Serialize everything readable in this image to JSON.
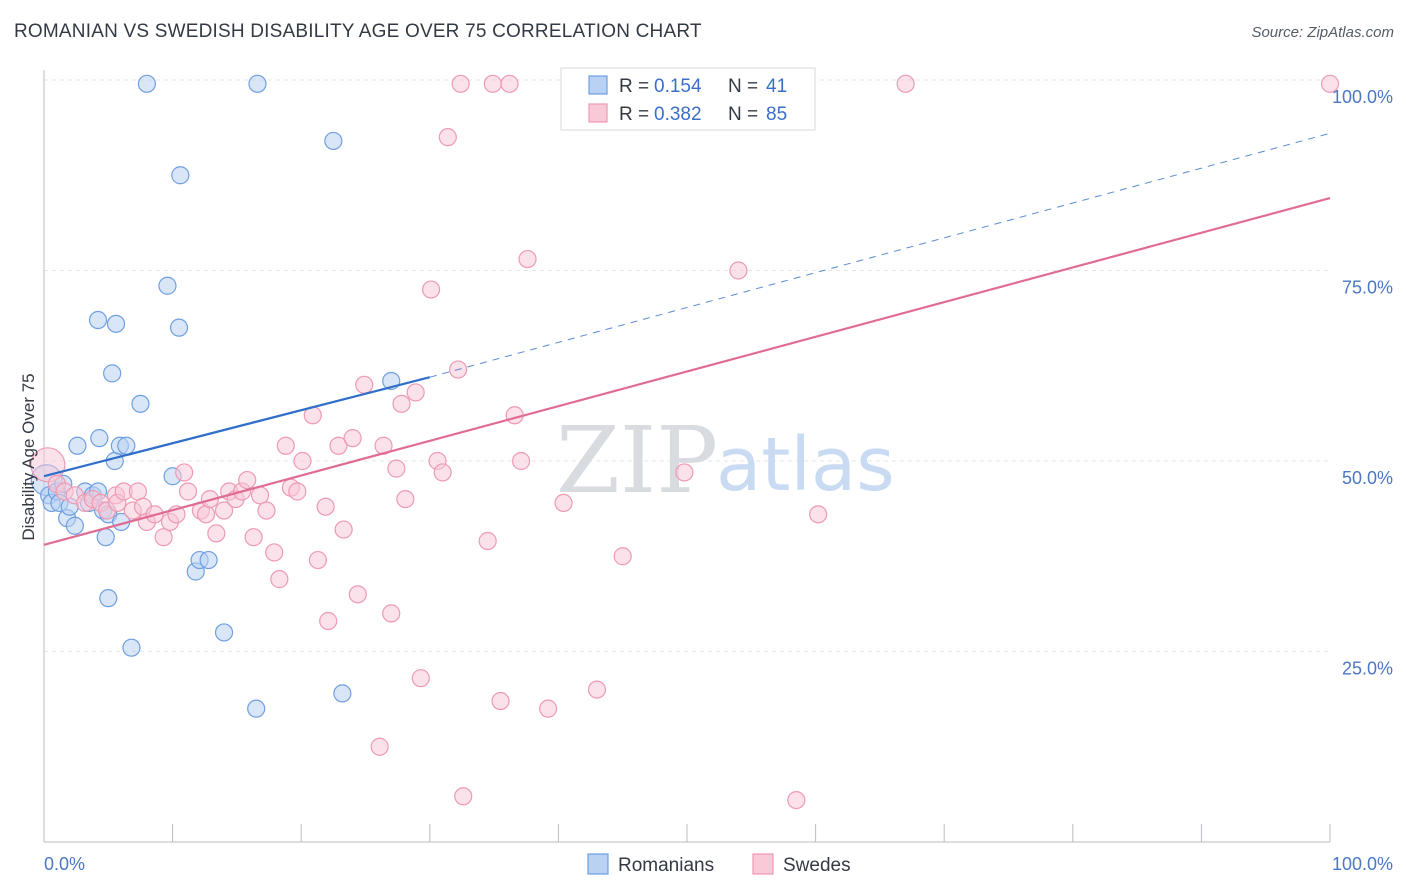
{
  "title": "ROMANIAN VS SWEDISH DISABILITY AGE OVER 75 CORRELATION CHART",
  "source": "Source: ZipAtlas.com",
  "watermark": {
    "zip": "ZIP",
    "atlas": "atlas"
  },
  "chart_data": {
    "type": "scatter",
    "ylabel": "Disability Age Over 75",
    "xlim": [
      0,
      100
    ],
    "ylim": [
      0,
      100
    ],
    "x_tick_labels": [
      {
        "value": 0,
        "label": "0.0%"
      },
      {
        "value": 100,
        "label": "100.0%"
      }
    ],
    "y_tick_labels": [
      {
        "value": 25,
        "label": "25.0%"
      },
      {
        "value": 50,
        "label": "50.0%"
      },
      {
        "value": 75,
        "label": "75.0%"
      },
      {
        "value": 100,
        "label": "100.0%"
      }
    ],
    "grid": true,
    "legend": {
      "position": "top-center",
      "rows": [
        {
          "r_label": "R = ",
          "r_value": "0.154",
          "n_label": "N = ",
          "n_value": "41"
        },
        {
          "r_label": "R = ",
          "r_value": "0.382",
          "n_label": "N = ",
          "n_value": "85"
        }
      ]
    },
    "series": [
      {
        "name": "Romanians",
        "color": "#6f9fe0",
        "fill": "#b9d1f3",
        "line_color": "#2f6fc9",
        "trend": {
          "x0": 0,
          "y0": 48,
          "x1": 30,
          "y1": 61,
          "dash_to_x": 100,
          "dash_to_y": 93
        },
        "points": [
          [
            0.2,
            47.5,
            18
          ],
          [
            0.4,
            45.5,
            10
          ],
          [
            0.6,
            44.5,
            10
          ],
          [
            1.0,
            46.0,
            10
          ],
          [
            1.2,
            44.5,
            10
          ],
          [
            1.5,
            47.0,
            10
          ],
          [
            1.8,
            42.5,
            10
          ],
          [
            2.0,
            44.0,
            10
          ],
          [
            2.4,
            41.5,
            10
          ],
          [
            2.6,
            52.0,
            10
          ],
          [
            3.2,
            46.0,
            10
          ],
          [
            3.5,
            44.5,
            10
          ],
          [
            3.8,
            45.5,
            10
          ],
          [
            4.2,
            46.0,
            10
          ],
          [
            4.2,
            68.5,
            10
          ],
          [
            4.3,
            53.0,
            10
          ],
          [
            4.6,
            43.5,
            10
          ],
          [
            4.8,
            40.0,
            10
          ],
          [
            5.0,
            43.0,
            10
          ],
          [
            5.0,
            32.0,
            10
          ],
          [
            5.3,
            61.5,
            10
          ],
          [
            5.5,
            50.0,
            10
          ],
          [
            5.6,
            68.0,
            10
          ],
          [
            5.9,
            52.0,
            10
          ],
          [
            6.0,
            42.0,
            10
          ],
          [
            6.4,
            52.0,
            10
          ],
          [
            6.8,
            25.5,
            10
          ],
          [
            7.5,
            57.5,
            10
          ],
          [
            8.0,
            99.5,
            10
          ],
          [
            9.6,
            73.0,
            10
          ],
          [
            10.0,
            48.0,
            10
          ],
          [
            10.5,
            67.5,
            10
          ],
          [
            10.6,
            87.5,
            10
          ],
          [
            11.8,
            35.5,
            10
          ],
          [
            12.1,
            37.0,
            10
          ],
          [
            12.8,
            37.0,
            10
          ],
          [
            14.0,
            27.5,
            10
          ],
          [
            16.5,
            17.5,
            10
          ],
          [
            16.6,
            99.5,
            10
          ],
          [
            22.5,
            92.0,
            10
          ],
          [
            23.2,
            19.5,
            10
          ],
          [
            27.0,
            60.5,
            10
          ]
        ]
      },
      {
        "name": "Swedes",
        "color": "#ee9ab3",
        "fill": "#f8c9d7",
        "line_color": "#e06c94",
        "trend": {
          "x0": 0,
          "y0": 39,
          "x1": 100,
          "y1": 84.5
        },
        "points": [
          [
            0.3,
            49.5,
            20
          ],
          [
            1.0,
            47.0,
            10
          ],
          [
            1.6,
            46.0,
            10
          ],
          [
            2.4,
            45.5,
            10
          ],
          [
            3.2,
            44.5,
            10
          ],
          [
            3.8,
            45.0,
            10
          ],
          [
            4.4,
            44.5,
            10
          ],
          [
            4.9,
            43.5,
            10
          ],
          [
            5.6,
            45.5,
            10
          ],
          [
            5.7,
            44.5,
            10
          ],
          [
            6.2,
            46.0,
            10
          ],
          [
            6.9,
            43.5,
            10
          ],
          [
            7.3,
            46.0,
            10
          ],
          [
            7.7,
            44.0,
            10
          ],
          [
            8.0,
            42.0,
            10
          ],
          [
            8.6,
            43.0,
            10
          ],
          [
            9.3,
            40.0,
            10
          ],
          [
            9.8,
            42.0,
            10
          ],
          [
            10.3,
            43.0,
            10
          ],
          [
            10.9,
            48.5,
            10
          ],
          [
            11.2,
            46.0,
            10
          ],
          [
            12.2,
            43.5,
            10
          ],
          [
            12.6,
            43.0,
            10
          ],
          [
            12.9,
            45.0,
            10
          ],
          [
            13.4,
            40.5,
            10
          ],
          [
            14.0,
            43.5,
            10
          ],
          [
            14.4,
            46.0,
            10
          ],
          [
            14.9,
            45.0,
            10
          ],
          [
            15.4,
            46.0,
            10
          ],
          [
            15.8,
            47.5,
            10
          ],
          [
            16.3,
            40.0,
            10
          ],
          [
            16.8,
            45.5,
            10
          ],
          [
            17.3,
            43.5,
            10
          ],
          [
            17.9,
            38.0,
            10
          ],
          [
            18.3,
            34.5,
            10
          ],
          [
            18.8,
            52.0,
            10
          ],
          [
            19.2,
            46.5,
            10
          ],
          [
            19.7,
            46.0,
            10
          ],
          [
            20.1,
            50.0,
            10
          ],
          [
            20.9,
            56.0,
            10
          ],
          [
            21.3,
            37.0,
            10
          ],
          [
            21.9,
            44.0,
            10
          ],
          [
            22.1,
            29.0,
            10
          ],
          [
            22.9,
            52.0,
            10
          ],
          [
            23.3,
            41.0,
            10
          ],
          [
            24.0,
            53.0,
            10
          ],
          [
            24.4,
            32.5,
            10
          ],
          [
            24.9,
            60.0,
            10
          ],
          [
            26.1,
            12.5,
            10
          ],
          [
            26.4,
            52.0,
            10
          ],
          [
            27.0,
            30.0,
            10
          ],
          [
            27.4,
            49.0,
            10
          ],
          [
            27.8,
            57.5,
            10
          ],
          [
            28.1,
            45.0,
            10
          ],
          [
            28.9,
            59.0,
            10
          ],
          [
            29.3,
            21.5,
            10
          ],
          [
            30.1,
            72.5,
            10
          ],
          [
            30.6,
            50.0,
            10
          ],
          [
            31.0,
            48.5,
            10
          ],
          [
            31.4,
            92.5,
            10
          ],
          [
            32.2,
            62.0,
            10
          ],
          [
            32.6,
            6.0,
            10
          ],
          [
            32.4,
            99.5,
            10
          ],
          [
            34.5,
            39.5,
            10
          ],
          [
            34.9,
            99.5,
            10
          ],
          [
            35.5,
            18.5,
            10
          ],
          [
            36.2,
            99.5,
            10
          ],
          [
            36.6,
            56.0,
            10
          ],
          [
            37.1,
            50.0,
            10
          ],
          [
            37.6,
            76.5,
            10
          ],
          [
            39.2,
            17.5,
            10
          ],
          [
            40.4,
            44.5,
            10
          ],
          [
            43.0,
            20.0,
            10
          ],
          [
            45.0,
            37.5,
            10
          ],
          [
            49.8,
            48.5,
            10
          ],
          [
            53.5,
            99.5,
            10
          ],
          [
            54.0,
            75.0,
            10
          ],
          [
            58.5,
            5.5,
            10
          ],
          [
            60.2,
            43.0,
            10
          ],
          [
            67.0,
            99.5,
            10
          ],
          [
            100.0,
            99.5,
            10
          ]
        ]
      }
    ]
  }
}
